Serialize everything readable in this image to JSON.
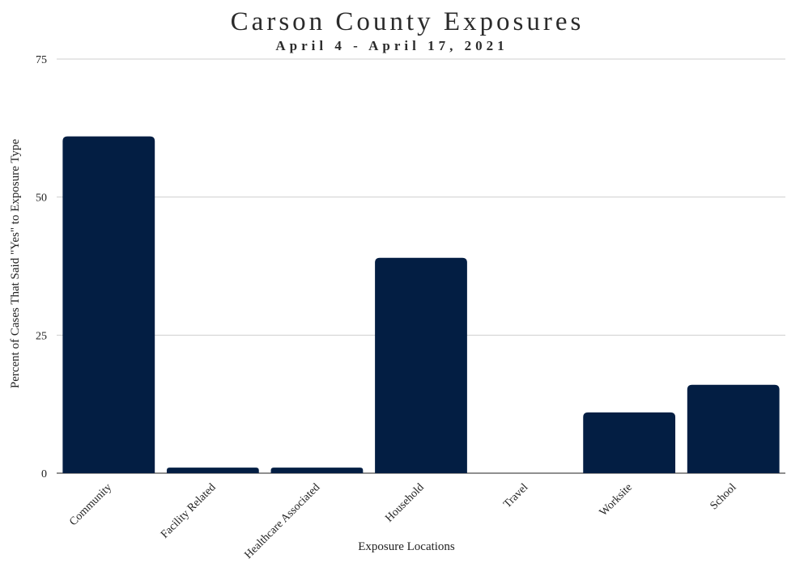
{
  "chart_data": {
    "type": "bar",
    "title": "Carson County Exposures",
    "subtitle": "April 4 - April 17, 2021",
    "xlabel": "Exposure Locations",
    "ylabel": "Percent of Cases That Said \"Yes\" to Exposure Type",
    "categories": [
      "Community",
      "Facility Related",
      "Healthcare Associated",
      "Household",
      "Travel",
      "Worksite",
      "School"
    ],
    "values": [
      61,
      1,
      1,
      39,
      0,
      11,
      16
    ],
    "ylim": [
      0,
      75
    ],
    "yticks": [
      "0",
      "25",
      "50",
      "75"
    ],
    "grid": true,
    "legend": "none",
    "bar_color": "#031e43"
  }
}
